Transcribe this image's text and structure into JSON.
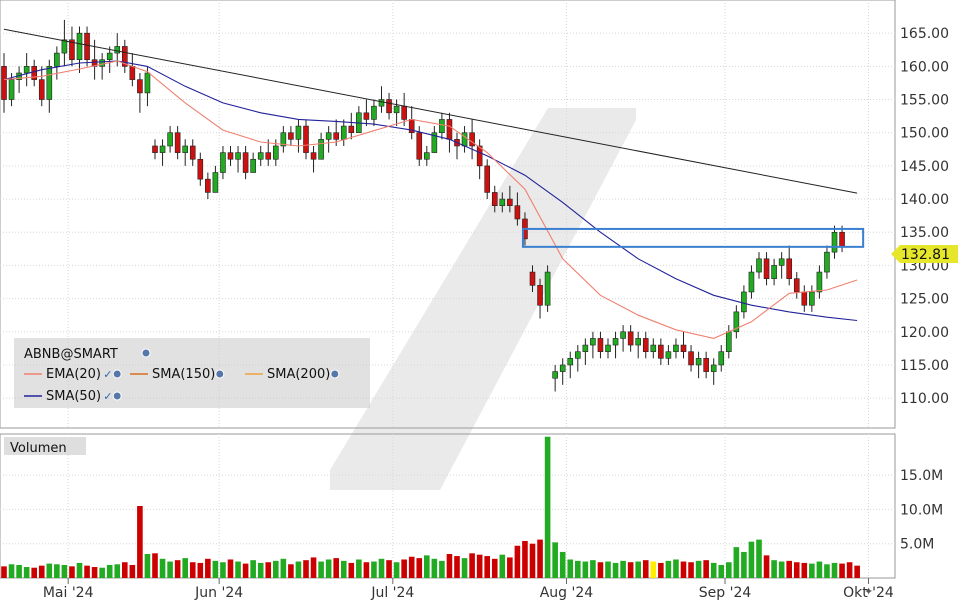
{
  "chart_data": [
    {
      "type": "candlestick",
      "symbol": "ABNB@SMART",
      "y_ticks": [
        110,
        115,
        120,
        125,
        130,
        135,
        140,
        145,
        150,
        155,
        160,
        165
      ],
      "y_tick_labels": [
        "110.00",
        "115.00",
        "120.00",
        "125.00",
        "130.00",
        "135.00",
        "140.00",
        "145.00",
        "150.00",
        "155.00",
        "160.00",
        "165.00"
      ],
      "ylim": [
        105.5,
        170
      ],
      "x_labels": [
        "Mai '24",
        "Jun '24",
        "Jul '24",
        "Aug '24",
        "Sep '24",
        "Okt '24"
      ],
      "last_price": 132.81,
      "last_price_label": "132.81",
      "grid": true,
      "legend": [
        {
          "label": "EMA(20)",
          "color": "#f08070",
          "marks": [
            "✓",
            "●"
          ]
        },
        {
          "label": "SMA(150)",
          "color": "#d87020",
          "marks": [
            "●"
          ]
        },
        {
          "label": "SMA(200)",
          "color": "#f0a040",
          "marks": [
            "●"
          ]
        },
        {
          "label": "SMA(50)",
          "color": "#22229a",
          "marks": [
            "✓",
            "●"
          ]
        }
      ],
      "ohlc": [
        [
          160,
          162,
          153,
          155
        ],
        [
          155,
          159,
          154,
          158
        ],
        [
          158,
          160,
          156,
          159
        ],
        [
          159,
          162,
          157,
          160
        ],
        [
          160,
          161,
          157,
          158
        ],
        [
          158,
          160,
          154,
          155
        ],
        [
          155,
          161,
          153,
          160
        ],
        [
          160,
          163,
          158,
          162
        ],
        [
          162,
          167,
          160,
          164
        ],
        [
          164,
          166,
          160,
          161
        ],
        [
          161,
          166,
          159,
          165
        ],
        [
          165,
          166,
          160,
          161
        ],
        [
          161,
          164,
          158,
          160
        ],
        [
          160,
          162,
          158,
          161
        ],
        [
          161,
          163,
          159,
          162
        ],
        [
          162,
          165,
          160,
          163
        ],
        [
          163,
          164,
          159,
          160
        ],
        [
          160,
          162,
          157,
          158
        ],
        [
          158,
          159,
          153,
          156
        ],
        [
          156,
          160,
          154,
          159
        ],
        [
          148,
          149,
          146,
          147
        ],
        [
          147,
          149,
          145,
          148
        ],
        [
          148,
          151,
          147,
          150
        ],
        [
          150,
          151,
          146,
          147
        ],
        [
          147,
          149,
          145,
          148
        ],
        [
          148,
          149,
          145,
          146
        ],
        [
          146,
          147,
          142,
          143
        ],
        [
          143,
          144,
          140,
          141
        ],
        [
          141,
          145,
          141,
          144
        ],
        [
          144,
          148,
          143,
          147
        ],
        [
          147,
          148,
          145,
          146
        ],
        [
          146,
          148,
          144,
          147
        ],
        [
          147,
          148,
          143,
          144
        ],
        [
          144,
          147,
          144,
          146
        ],
        [
          146,
          148,
          145,
          147
        ],
        [
          147,
          149,
          145,
          146
        ],
        [
          146,
          149,
          145,
          148
        ],
        [
          148,
          151,
          147,
          150
        ],
        [
          150,
          151,
          148,
          149
        ],
        [
          149,
          152,
          147,
          151
        ],
        [
          151,
          152,
          146,
          147
        ],
        [
          147,
          148,
          144,
          146
        ],
        [
          146,
          150,
          146,
          149
        ],
        [
          149,
          151,
          147,
          150
        ],
        [
          150,
          152,
          148,
          149
        ],
        [
          149,
          152,
          148,
          151
        ],
        [
          151,
          153,
          149,
          150
        ],
        [
          150,
          154,
          150,
          153
        ],
        [
          153,
          155,
          151,
          152
        ],
        [
          152,
          155,
          151,
          154
        ],
        [
          154,
          157,
          153,
          155
        ],
        [
          155,
          156,
          152,
          153
        ],
        [
          153,
          155,
          151,
          154
        ],
        [
          154,
          156,
          151,
          152
        ],
        [
          152,
          154,
          149,
          150
        ],
        [
          150,
          151,
          145,
          146
        ],
        [
          146,
          148,
          145,
          147
        ],
        [
          147,
          151,
          147,
          150
        ],
        [
          150,
          153,
          149,
          152
        ],
        [
          152,
          153,
          147,
          149
        ],
        [
          149,
          150,
          146,
          148
        ],
        [
          148,
          151,
          147,
          150
        ],
        [
          150,
          152,
          146,
          148
        ],
        [
          148,
          149,
          143,
          145
        ],
        [
          145,
          146,
          140,
          141
        ],
        [
          141,
          142,
          138,
          139
        ],
        [
          139,
          141,
          138,
          140
        ],
        [
          140,
          142,
          138,
          139
        ],
        [
          139,
          141,
          136,
          137
        ],
        [
          137,
          138,
          133,
          134
        ],
        [
          129,
          130,
          126,
          127
        ],
        [
          127,
          128,
          122,
          124
        ],
        [
          124,
          130,
          123,
          129
        ],
        [
          113,
          115,
          111,
          114
        ],
        [
          114,
          116,
          112,
          115
        ],
        [
          115,
          117,
          113,
          116
        ],
        [
          116,
          118,
          114,
          117
        ],
        [
          117,
          119,
          115,
          118
        ],
        [
          118,
          120,
          116,
          119
        ],
        [
          119,
          120,
          116,
          117
        ],
        [
          117,
          119,
          116,
          118
        ],
        [
          118,
          120,
          116,
          119
        ],
        [
          119,
          121,
          117,
          120
        ],
        [
          120,
          121,
          117,
          118
        ],
        [
          118,
          120,
          116,
          119
        ],
        [
          119,
          120,
          116,
          117
        ],
        [
          117,
          119,
          116,
          118
        ],
        [
          118,
          119,
          115,
          116
        ],
        [
          116,
          118,
          115,
          117
        ],
        [
          117,
          119,
          116,
          118
        ],
        [
          118,
          120,
          116,
          117
        ],
        [
          117,
          118,
          114,
          115
        ],
        [
          115,
          117,
          113,
          116
        ],
        [
          116,
          117,
          113,
          114
        ],
        [
          114,
          116,
          112,
          115
        ],
        [
          115,
          118,
          114,
          117
        ],
        [
          117,
          121,
          116,
          120
        ],
        [
          120,
          124,
          119,
          123
        ],
        [
          123,
          127,
          122,
          126
        ],
        [
          126,
          130,
          125,
          129
        ],
        [
          129,
          132,
          128,
          131
        ],
        [
          131,
          132,
          127,
          128
        ],
        [
          128,
          131,
          127,
          130
        ],
        [
          130,
          132,
          128,
          131
        ],
        [
          131,
          133,
          127,
          128
        ],
        [
          128,
          129,
          125,
          126
        ],
        [
          126,
          127,
          123,
          124
        ],
        [
          124,
          127,
          123,
          126
        ],
        [
          126,
          130,
          125,
          129
        ],
        [
          129,
          133,
          128,
          132
        ],
        [
          132,
          136,
          131,
          135
        ],
        [
          135,
          136,
          132,
          132.81
        ]
      ],
      "ema20": [
        [
          0,
          158
        ],
        [
          5,
          158.5
        ],
        [
          10,
          159.6
        ],
        [
          15,
          160.8
        ],
        [
          19,
          159.2
        ],
        [
          24,
          154.5
        ],
        [
          29,
          150.4
        ],
        [
          34,
          148.6
        ],
        [
          39,
          148.0
        ],
        [
          44,
          148.6
        ],
        [
          49,
          150.3
        ],
        [
          54,
          152.0
        ],
        [
          59,
          151.0
        ],
        [
          64,
          147.0
        ],
        [
          69,
          141.5
        ],
        [
          74,
          131
        ],
        [
          79,
          125.5
        ],
        [
          84,
          122.5
        ],
        [
          89,
          120.3
        ],
        [
          94,
          119.0
        ],
        [
          99,
          121.5
        ],
        [
          104,
          125.8
        ],
        [
          109,
          126.3
        ],
        [
          113,
          127.8
        ]
      ],
      "sma50": [
        [
          0,
          158
        ],
        [
          5,
          159.5
        ],
        [
          10,
          160.5
        ],
        [
          15,
          160.8
        ],
        [
          19,
          160.0
        ],
        [
          24,
          157.0
        ],
        [
          29,
          154.5
        ],
        [
          34,
          153.0
        ],
        [
          39,
          152.0
        ],
        [
          44,
          151.7
        ],
        [
          49,
          151.3
        ],
        [
          54,
          150.4
        ],
        [
          59,
          149.0
        ],
        [
          64,
          146.5
        ],
        [
          69,
          143.6
        ],
        [
          74,
          139.5
        ],
        [
          79,
          135.0
        ],
        [
          84,
          131.0
        ],
        [
          89,
          128.0
        ],
        [
          94,
          125.5
        ],
        [
          99,
          124.0
        ],
        [
          104,
          123.0
        ],
        [
          109,
          122.2
        ],
        [
          113,
          121.7
        ]
      ],
      "trendline": [
        [
          0,
          165.6
        ],
        [
          113,
          140.9
        ]
      ],
      "box": {
        "x0": 69,
        "x1": 113,
        "y0": 132.8,
        "y1": 135.5
      }
    },
    {
      "type": "bar",
      "title": "Volumen",
      "y_ticks": [
        5000000,
        10000000,
        15000000
      ],
      "y_tick_labels": [
        "5.0M",
        "10.0M",
        "15.0M"
      ],
      "ylim": [
        0,
        21000000
      ],
      "values": [
        1.7,
        2.0,
        1.9,
        1.6,
        1.5,
        1.8,
        2.1,
        2.0,
        1.9,
        1.7,
        2.2,
        1.8,
        1.6,
        1.5,
        1.9,
        2.0,
        2.3,
        1.9,
        10.5,
        3.5,
        3.6,
        2.8,
        2.4,
        2.6,
        2.9,
        2.3,
        2.2,
        2.8,
        2.5,
        2.3,
        2.7,
        2.4,
        2.1,
        2.6,
        2.2,
        2.3,
        2.5,
        2.8,
        2.0,
        2.4,
        2.6,
        3.0,
        2.4,
        2.7,
        2.9,
        2.5,
        2.2,
        2.7,
        2.3,
        2.4,
        2.8,
        2.6,
        2.3,
        2.7,
        3.1,
        2.9,
        3.3,
        2.8,
        2.5,
        3.5,
        3.2,
        2.9,
        3.6,
        3.4,
        3.2,
        2.8,
        3.4,
        3.0,
        4.7,
        5.4,
        5.0,
        5.6,
        20.6,
        5.2,
        3.8,
        2.7,
        2.5,
        2.4,
        2.6,
        2.3,
        2.4,
        2.2,
        2.5,
        2.3,
        2.4,
        2.6,
        2.4,
        2.2,
        2.5,
        2.7,
        2.4,
        2.3,
        2.5,
        2.6,
        2.2,
        1.9,
        2.3,
        4.5,
        3.8,
        5.3,
        5.6,
        3.3,
        2.6,
        2.4,
        2.5,
        2.3,
        2.2,
        2.1,
        2.4,
        2.0,
        2.2,
        2.1,
        2.3,
        1.8
      ],
      "value_scale": 1000000,
      "bar_color_default": "#cc0000",
      "bar_color_up": "#22aa22",
      "highlight_index": 86,
      "highlight_color": "#ffee00"
    }
  ],
  "colors": {
    "up": "#22aa22",
    "down": "#cc1111",
    "grid": "#d8d8d8",
    "price_badge": "#e6e62a",
    "box": "#3a7fd0",
    "trendline": "#222222"
  }
}
